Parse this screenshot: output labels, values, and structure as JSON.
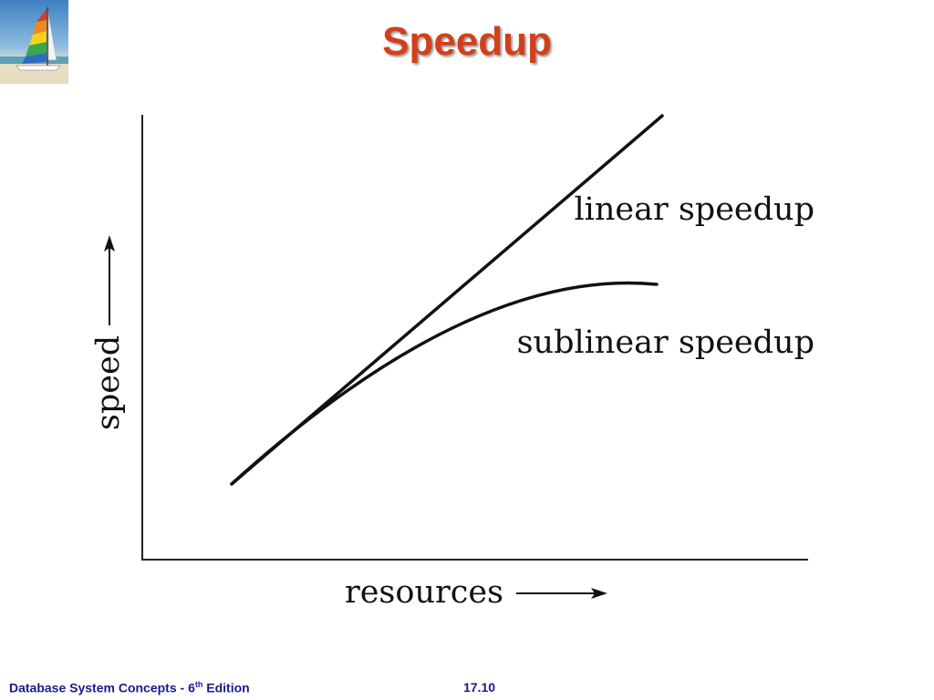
{
  "slide": {
    "title": "Speedup",
    "footer": {
      "book_title": "Database System Concepts - 6",
      "edition_sup": "th",
      "edition_word": " Edition",
      "page_number": "17.10"
    }
  },
  "diagram": {
    "curves": [
      {
        "label": "linear speedup",
        "shape": "straight line"
      },
      {
        "label": "sublinear speedup",
        "shape": "concave curve"
      }
    ],
    "x_axis_label": "resources",
    "y_axis_label": "speed"
  },
  "logo": {
    "icon": "sailboat-icon"
  }
}
